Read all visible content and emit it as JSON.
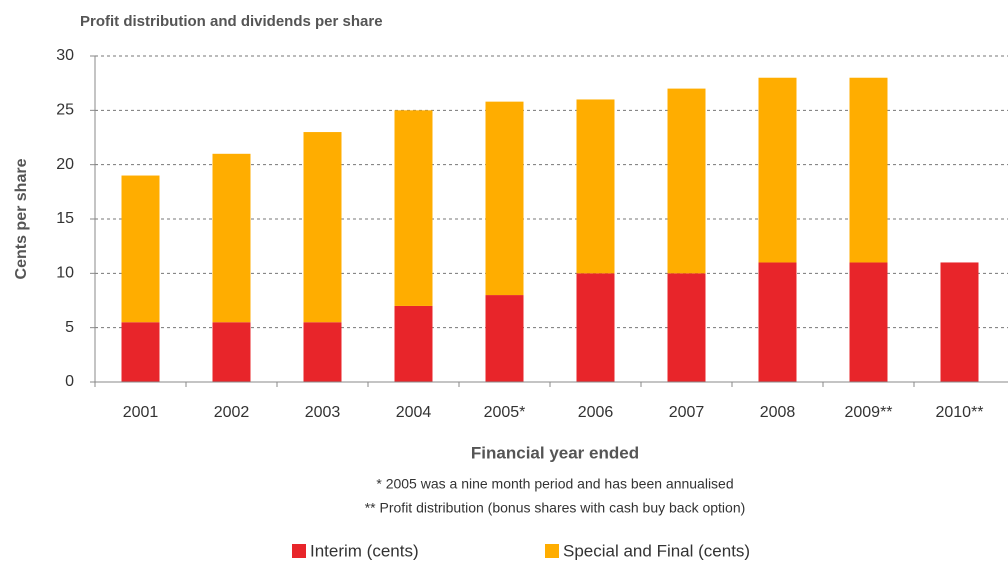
{
  "chart_data": {
    "type": "stacked-bar",
    "title": "Profit distribution and dividends per share",
    "y_label": "Cents per share",
    "x_label": "Financial year ended",
    "notes": [
      "* 2005 was a nine month period and has been annualised",
      "** Profit distribution (bonus shares with cash buy back option)"
    ],
    "categories": [
      "2001",
      "2002",
      "2003",
      "2004",
      "2005*",
      "2006",
      "2007",
      "2008",
      "2009**",
      "2010**"
    ],
    "series": [
      {
        "name": "Interim (cents)",
        "color": "#e8252a",
        "values": [
          5.5,
          5.5,
          5.5,
          7,
          8,
          10,
          10,
          11,
          11,
          11
        ]
      },
      {
        "name": "Special and Final (cents)",
        "color": "#ffad00",
        "values": [
          13.5,
          15.5,
          17.5,
          18,
          17.8,
          16,
          17,
          17,
          17,
          null
        ]
      }
    ],
    "ylim": [
      0,
      30
    ],
    "yticks": [
      0,
      5,
      10,
      15,
      20,
      25,
      30
    ],
    "grid": true
  }
}
